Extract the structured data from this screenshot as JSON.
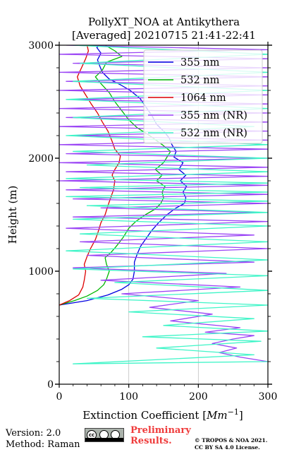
{
  "header": {
    "title_line1": "PollyXT_NOA at Antikythera",
    "title_line2": "[Averaged] 20210715 21:41-22:41"
  },
  "footer": {
    "version": "Version: 2.0",
    "method": "Method: Raman",
    "preliminary_line1": "Preliminary",
    "preliminary_line2": "Results.",
    "copyright_line1": "© TROPOS & NOA 2021.",
    "copyright_line2": "CC BY SA 4.0 License.",
    "license_badge": "cc-by-sa-badge"
  },
  "colors": {
    "s355": "#0000e0",
    "s532": "#00b800",
    "s1064": "#dd0000",
    "s355nr": "#9b45f5",
    "s532nr": "#40f5c8",
    "grid": "#c0c0c0",
    "prelim": "#ef3b3b"
  },
  "chart_data": {
    "type": "line",
    "title": "PollyXT_NOA at Antikythera\n[Averaged] 20210715 21:41-22:41",
    "xlabel": "Extinction Coefficient [Mm⁻¹]",
    "ylabel": "Height (m)",
    "xlim": [
      0,
      300
    ],
    "ylim": [
      0,
      3000
    ],
    "xticks": [
      0,
      100,
      200,
      300
    ],
    "yticks": [
      0,
      1000,
      2000,
      3000
    ],
    "grid": "vertical",
    "legend_position": "top-right",
    "series": [
      {
        "name": "355 nm",
        "color_key": "s355",
        "points": [
          [
            0,
            700
          ],
          [
            40,
            740
          ],
          [
            70,
            790
          ],
          [
            90,
            840
          ],
          [
            100,
            880
          ],
          [
            106,
            930
          ],
          [
            108,
            1000
          ],
          [
            108,
            1080
          ],
          [
            112,
            1150
          ],
          [
            117,
            1220
          ],
          [
            125,
            1290
          ],
          [
            133,
            1360
          ],
          [
            143,
            1430
          ],
          [
            155,
            1500
          ],
          [
            168,
            1560
          ],
          [
            180,
            1600
          ],
          [
            182,
            1650
          ],
          [
            178,
            1700
          ],
          [
            183,
            1750
          ],
          [
            174,
            1800
          ],
          [
            182,
            1850
          ],
          [
            172,
            1900
          ],
          [
            178,
            1960
          ],
          [
            165,
            2010
          ],
          [
            168,
            2060
          ],
          [
            162,
            2120
          ],
          [
            158,
            2180
          ],
          [
            150,
            2240
          ],
          [
            140,
            2300
          ],
          [
            133,
            2380
          ],
          [
            125,
            2450
          ],
          [
            116,
            2530
          ],
          [
            102,
            2600
          ],
          [
            88,
            2650
          ],
          [
            72,
            2700
          ],
          [
            62,
            2760
          ],
          [
            58,
            2820
          ],
          [
            55,
            2870
          ],
          [
            60,
            2930
          ],
          [
            54,
            2980
          ],
          [
            58,
            3000
          ]
        ]
      },
      {
        "name": "532 nm",
        "color_key": "s532",
        "points": [
          [
            0,
            700
          ],
          [
            22,
            740
          ],
          [
            40,
            780
          ],
          [
            55,
            830
          ],
          [
            64,
            880
          ],
          [
            68,
            930
          ],
          [
            72,
            1000
          ],
          [
            68,
            1060
          ],
          [
            66,
            1120
          ],
          [
            75,
            1170
          ],
          [
            82,
            1220
          ],
          [
            92,
            1300
          ],
          [
            100,
            1380
          ],
          [
            110,
            1440
          ],
          [
            124,
            1500
          ],
          [
            138,
            1550
          ],
          [
            146,
            1600
          ],
          [
            150,
            1650
          ],
          [
            148,
            1700
          ],
          [
            152,
            1750
          ],
          [
            140,
            1800
          ],
          [
            148,
            1850
          ],
          [
            138,
            1900
          ],
          [
            150,
            1960
          ],
          [
            155,
            2010
          ],
          [
            160,
            2060
          ],
          [
            148,
            2120
          ],
          [
            130,
            2200
          ],
          [
            112,
            2270
          ],
          [
            100,
            2340
          ],
          [
            90,
            2420
          ],
          [
            80,
            2500
          ],
          [
            72,
            2580
          ],
          [
            60,
            2660
          ],
          [
            52,
            2720
          ],
          [
            62,
            2780
          ],
          [
            68,
            2850
          ],
          [
            90,
            2900
          ],
          [
            80,
            2950
          ],
          [
            66,
            3000
          ]
        ]
      },
      {
        "name": "1064 nm",
        "color_key": "s1064",
        "points": [
          [
            0,
            700
          ],
          [
            15,
            740
          ],
          [
            28,
            790
          ],
          [
            34,
            860
          ],
          [
            36,
            920
          ],
          [
            38,
            1000
          ],
          [
            36,
            1060
          ],
          [
            40,
            1130
          ],
          [
            45,
            1200
          ],
          [
            52,
            1280
          ],
          [
            56,
            1350
          ],
          [
            60,
            1430
          ],
          [
            66,
            1500
          ],
          [
            70,
            1580
          ],
          [
            74,
            1650
          ],
          [
            78,
            1720
          ],
          [
            80,
            1800
          ],
          [
            76,
            1850
          ],
          [
            80,
            1900
          ],
          [
            86,
            1960
          ],
          [
            88,
            2020
          ],
          [
            80,
            2080
          ],
          [
            76,
            2150
          ],
          [
            70,
            2240
          ],
          [
            62,
            2320
          ],
          [
            55,
            2400
          ],
          [
            46,
            2480
          ],
          [
            38,
            2560
          ],
          [
            30,
            2640
          ],
          [
            26,
            2720
          ],
          [
            32,
            2800
          ],
          [
            38,
            2880
          ],
          [
            42,
            2950
          ],
          [
            40,
            3000
          ]
        ]
      },
      {
        "name": "355 nm (NR)",
        "color_key": "s355nr",
        "points": [
          [
            300,
            200
          ],
          [
            260,
            240
          ],
          [
            230,
            280
          ],
          [
            255,
            320
          ],
          [
            220,
            360
          ],
          [
            250,
            400
          ],
          [
            280,
            430
          ],
          [
            210,
            460
          ],
          [
            260,
            500
          ],
          [
            160,
            560
          ],
          [
            220,
            620
          ],
          [
            130,
            680
          ],
          [
            200,
            740
          ],
          [
            90,
            800
          ],
          [
            260,
            860
          ],
          [
            60,
            920
          ],
          [
            240,
            980
          ],
          [
            20,
            1030
          ],
          [
            280,
            1080
          ],
          [
            40,
            1140
          ],
          [
            300,
            1200
          ],
          [
            30,
            1260
          ],
          [
            280,
            1320
          ],
          [
            10,
            1380
          ],
          [
            300,
            1440
          ],
          [
            20,
            1480
          ],
          [
            290,
            1520
          ],
          [
            60,
            1560
          ],
          [
            300,
            1600
          ],
          [
            20,
            1640
          ],
          [
            300,
            1680
          ],
          [
            10,
            1720
          ],
          [
            300,
            1760
          ],
          [
            0,
            1800
          ],
          [
            300,
            1840
          ],
          [
            10,
            1880
          ],
          [
            300,
            1920
          ],
          [
            0,
            1960
          ],
          [
            300,
            2000
          ],
          [
            10,
            2040
          ],
          [
            300,
            2080
          ],
          [
            0,
            2120
          ],
          [
            300,
            2160
          ],
          [
            20,
            2200
          ],
          [
            300,
            2240
          ],
          [
            0,
            2280
          ],
          [
            300,
            2320
          ],
          [
            10,
            2360
          ],
          [
            300,
            2400
          ],
          [
            0,
            2440
          ],
          [
            300,
            2480
          ],
          [
            20,
            2520
          ],
          [
            300,
            2560
          ],
          [
            0,
            2600
          ],
          [
            300,
            2640
          ],
          [
            10,
            2680
          ],
          [
            300,
            2720
          ],
          [
            0,
            2760
          ],
          [
            300,
            2800
          ],
          [
            20,
            2840
          ],
          [
            300,
            2880
          ],
          [
            0,
            2920
          ],
          [
            300,
            2960
          ],
          [
            10,
            3000
          ]
        ]
      },
      {
        "name": "532 nm (NR)",
        "color_key": "s532nr",
        "points": [
          [
            300,
            200
          ],
          [
            20,
            180
          ],
          [
            280,
            260
          ],
          [
            140,
            320
          ],
          [
            290,
            380
          ],
          [
            120,
            420
          ],
          [
            300,
            470
          ],
          [
            150,
            520
          ],
          [
            280,
            580
          ],
          [
            100,
            640
          ],
          [
            300,
            700
          ],
          [
            40,
            760
          ],
          [
            300,
            830
          ],
          [
            80,
            900
          ],
          [
            300,
            960
          ],
          [
            20,
            1020
          ],
          [
            300,
            1100
          ],
          [
            10,
            1180
          ],
          [
            300,
            1260
          ],
          [
            30,
            1330
          ],
          [
            300,
            1400
          ],
          [
            20,
            1460
          ],
          [
            300,
            1520
          ],
          [
            40,
            1580
          ],
          [
            300,
            1620
          ],
          [
            10,
            1660
          ],
          [
            300,
            1700
          ],
          [
            30,
            1740
          ],
          [
            300,
            1780
          ],
          [
            10,
            1820
          ],
          [
            300,
            1880
          ],
          [
            40,
            1940
          ],
          [
            300,
            2000
          ],
          [
            20,
            2060
          ],
          [
            300,
            2120
          ],
          [
            10,
            2200
          ],
          [
            280,
            2280
          ],
          [
            20,
            2360
          ],
          [
            300,
            2440
          ],
          [
            10,
            2520
          ],
          [
            300,
            2600
          ],
          [
            20,
            2680
          ],
          [
            300,
            2760
          ],
          [
            30,
            2840
          ],
          [
            300,
            2920
          ],
          [
            20,
            3000
          ]
        ]
      }
    ]
  }
}
